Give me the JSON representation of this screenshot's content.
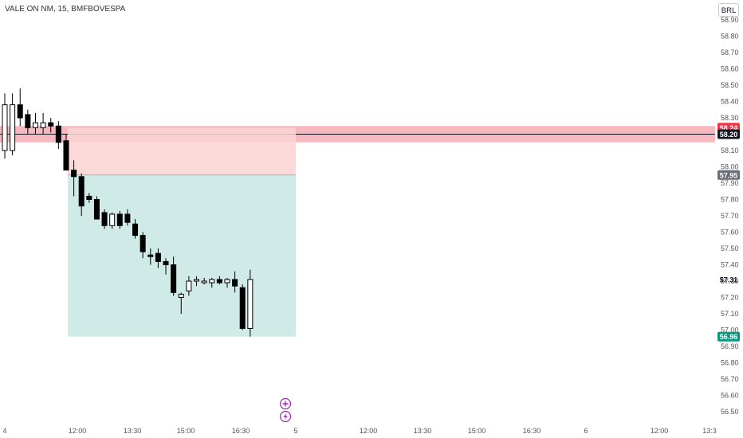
{
  "symbol_title": "VALE ON NM, 15, BMFBOVESPA",
  "currency_button": "BRL",
  "chart_data": {
    "type": "candlestick",
    "y_tick_labels": [
      "58.90",
      "58.80",
      "58.70",
      "58.60",
      "58.50",
      "58.40",
      "58.30",
      "58.20",
      "58.10",
      "58.00",
      "57.90",
      "57.80",
      "57.70",
      "57.60",
      "57.50",
      "57.40",
      "57.30",
      "57.20",
      "57.10",
      "57.00",
      "56.90",
      "56.80",
      "56.70",
      "56.60",
      "56.50"
    ],
    "x_tick_labels": [
      "4",
      "12:00",
      "13:30",
      "15:00",
      "16:30",
      "5",
      "12:00",
      "13:30",
      "15:00",
      "16:30",
      "6",
      "12:00",
      "13:3"
    ],
    "ylim": [
      56.45,
      58.95
    ],
    "candles": [
      {
        "o": 58.1,
        "h": 58.45,
        "l": 58.05,
        "c": 58.38
      },
      {
        "o": 58.1,
        "h": 58.45,
        "l": 58.07,
        "c": 58.38
      },
      {
        "o": 58.38,
        "h": 58.48,
        "l": 58.25,
        "c": 58.3
      },
      {
        "o": 58.32,
        "h": 58.35,
        "l": 58.2,
        "c": 58.24
      },
      {
        "o": 58.24,
        "h": 58.33,
        "l": 58.2,
        "c": 58.27
      },
      {
        "o": 58.24,
        "h": 58.33,
        "l": 58.2,
        "c": 58.27
      },
      {
        "o": 58.27,
        "h": 58.3,
        "l": 58.21,
        "c": 58.25
      },
      {
        "o": 58.25,
        "h": 58.28,
        "l": 58.11,
        "c": 58.15
      },
      {
        "o": 58.16,
        "h": 58.2,
        "l": 57.98,
        "c": 57.98
      },
      {
        "o": 57.98,
        "h": 58.04,
        "l": 57.82,
        "c": 57.94
      },
      {
        "o": 57.94,
        "h": 57.96,
        "l": 57.7,
        "c": 57.76
      },
      {
        "o": 57.82,
        "h": 57.84,
        "l": 57.78,
        "c": 57.8
      },
      {
        "o": 57.8,
        "h": 57.82,
        "l": 57.7,
        "c": 57.68
      },
      {
        "o": 57.72,
        "h": 57.74,
        "l": 57.62,
        "c": 57.64
      },
      {
        "o": 57.64,
        "h": 57.72,
        "l": 57.62,
        "c": 57.71
      },
      {
        "o": 57.71,
        "h": 57.73,
        "l": 57.62,
        "c": 57.64
      },
      {
        "o": 57.71,
        "h": 57.74,
        "l": 57.64,
        "c": 57.66
      },
      {
        "o": 57.65,
        "h": 57.68,
        "l": 57.56,
        "c": 57.58
      },
      {
        "o": 57.58,
        "h": 57.6,
        "l": 57.44,
        "c": 57.48
      },
      {
        "o": 57.46,
        "h": 57.5,
        "l": 57.4,
        "c": 57.45
      },
      {
        "o": 57.47,
        "h": 57.5,
        "l": 57.38,
        "c": 57.42
      },
      {
        "o": 57.42,
        "h": 57.44,
        "l": 57.34,
        "c": 57.4
      },
      {
        "o": 57.4,
        "h": 57.45,
        "l": 57.21,
        "c": 57.23
      },
      {
        "o": 57.2,
        "h": 57.23,
        "l": 57.1,
        "c": 57.22
      },
      {
        "o": 57.24,
        "h": 57.33,
        "l": 57.21,
        "c": 57.3
      },
      {
        "o": 57.3,
        "h": 57.33,
        "l": 57.27,
        "c": 57.31
      },
      {
        "o": 57.29,
        "h": 57.32,
        "l": 57.28,
        "c": 57.3
      },
      {
        "o": 57.29,
        "h": 57.32,
        "l": 57.26,
        "c": 57.31
      },
      {
        "o": 57.31,
        "h": 57.33,
        "l": 57.28,
        "c": 57.29
      },
      {
        "o": 57.29,
        "h": 57.32,
        "l": 57.26,
        "c": 57.31
      },
      {
        "o": 57.31,
        "h": 57.36,
        "l": 57.23,
        "c": 57.27
      },
      {
        "o": 57.26,
        "h": 57.28,
        "l": 57.0,
        "c": 57.01
      },
      {
        "o": 57.01,
        "h": 57.37,
        "l": 56.96,
        "c": 57.31
      }
    ],
    "horizontal_level": {
      "value": 58.2,
      "label": "58.20",
      "color": "#131722"
    },
    "price_badges": [
      {
        "value": 58.24,
        "label": "58.24",
        "color": "#f23645"
      },
      {
        "value": 58.2,
        "label": "58.20",
        "color": "#131722"
      },
      {
        "value": 57.95,
        "label": "57.95",
        "color": "#6a6d78"
      },
      {
        "value": 57.31,
        "label": "57.31",
        "color": "none"
      },
      {
        "value": 56.96,
        "label": "56.96",
        "color": "#089981"
      }
    ],
    "risk_zone": {
      "top": 58.24,
      "bottom": 57.95,
      "color": "#fbd4d4"
    },
    "reward_zone": {
      "top": 57.95,
      "bottom": 56.96,
      "color": "#cfeae7"
    },
    "red_band": {
      "top": 58.25,
      "bottom": 58.15,
      "color": "#f7b8bf"
    },
    "grid": false,
    "legend": "none"
  },
  "icons": {
    "add": "plus-circle-icon",
    "alert": "lightning-circle-icon",
    "icon_color": "#9c27b0"
  }
}
